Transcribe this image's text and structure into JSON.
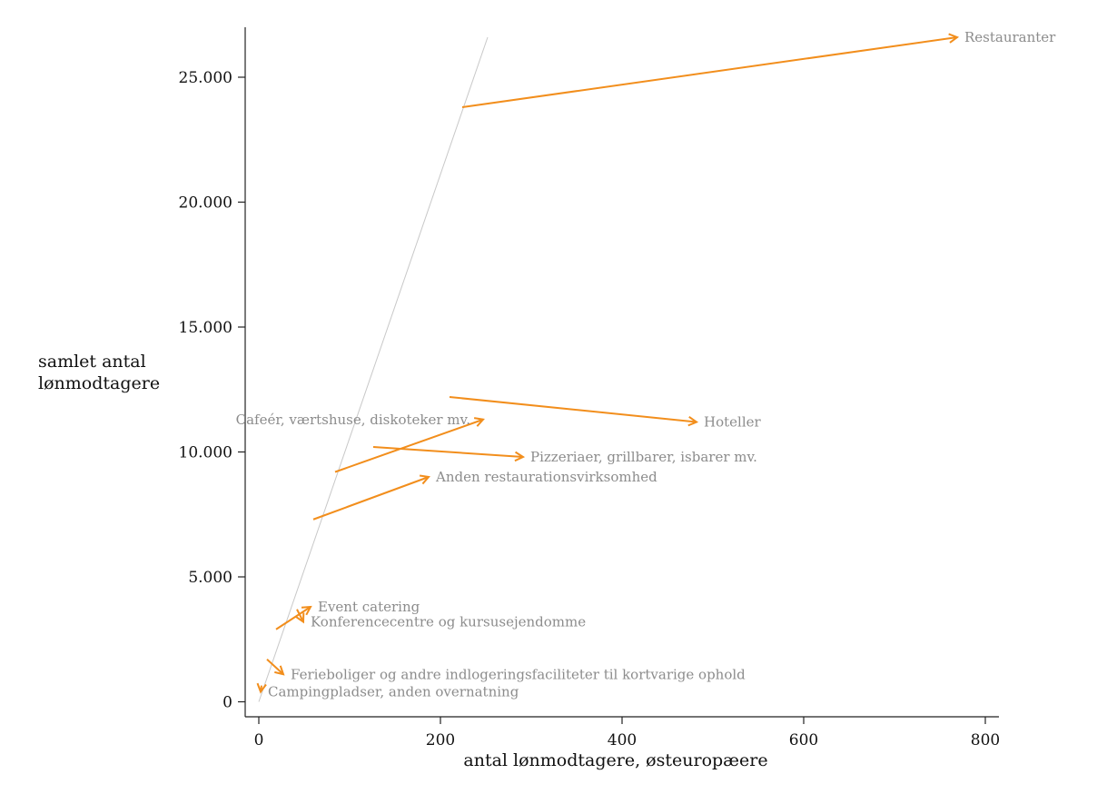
{
  "chart_data": {
    "type": "arrow-scatter",
    "xlabel": "antal lønmodtagere, østeuropæere",
    "ylabel": [
      "samlet antal",
      "lønmodtagere"
    ],
    "xlim": [
      -15,
      815
    ],
    "ylim": [
      -600,
      27000
    ],
    "xticks": [
      0,
      200,
      400,
      600,
      800
    ],
    "xtick_labels": [
      "0",
      "200",
      "400",
      "600",
      "800"
    ],
    "yticks": [
      0,
      5000,
      10000,
      15000,
      20000,
      25000
    ],
    "ytick_labels": [
      "0",
      "5.000",
      "10.000",
      "15.000",
      "20.000",
      "25.000"
    ],
    "grid": false,
    "legend": "none",
    "reference_line": {
      "x": [
        0,
        252
      ],
      "y": [
        0,
        26600
      ],
      "color": "#c8c8c8"
    },
    "arrow_color": "#f28e1c",
    "label_color": "#8c8c8c",
    "arrows": [
      {
        "label": "Restauranter",
        "x0": 224,
        "y0": 23800,
        "x1": 769,
        "y1": 26600,
        "label_pos": "right"
      },
      {
        "label": "Hoteller",
        "x0": 210,
        "y0": 12200,
        "x1": 482,
        "y1": 11200,
        "label_pos": "right"
      },
      {
        "label": "Cafeér, værtshuse, diskoteker mv.",
        "x0": 84,
        "y0": 9200,
        "x1": 247,
        "y1": 11300,
        "label_pos": "left"
      },
      {
        "label": "Pizzeriaer, grillbarer, isbarer mv.",
        "x0": 126,
        "y0": 10200,
        "x1": 291,
        "y1": 9800,
        "label_pos": "right"
      },
      {
        "label": "Anden restaurationsvirksomhed",
        "x0": 60,
        "y0": 7300,
        "x1": 187,
        "y1": 9000,
        "label_pos": "right"
      },
      {
        "label": "Event catering",
        "x0": 19,
        "y0": 2900,
        "x1": 57,
        "y1": 3800,
        "label_pos": "right"
      },
      {
        "label": "Konferencecentre og kursusejendomme",
        "x0": 42,
        "y0": 3700,
        "x1": 49,
        "y1": 3200,
        "label_pos": "right"
      },
      {
        "label": "Ferieboliger og andre indlogeringsfaciliteter til kortvarige ophold",
        "x0": 9,
        "y0": 1700,
        "x1": 27,
        "y1": 1100,
        "label_pos": "right"
      },
      {
        "label": "Campingpladser, anden overnatning",
        "x0": 3,
        "y0": 650,
        "x1": 2,
        "y1": 400,
        "label_pos": "right"
      }
    ]
  }
}
